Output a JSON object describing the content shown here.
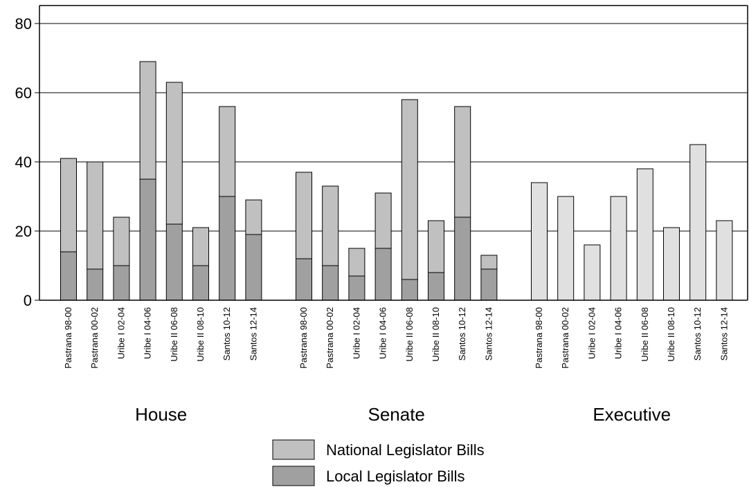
{
  "chart_data": {
    "type": "bar",
    "stacked": true,
    "ylim": [
      0,
      80
    ],
    "yticks": [
      0,
      20,
      40,
      60,
      80
    ],
    "grid": true,
    "legend_position": "bottom-center",
    "colors": {
      "national": "#c0c0c0",
      "local": "#a0a0a0",
      "executive": "#e0e0e0",
      "outline": "#000000"
    },
    "legend": [
      {
        "label": "National Legislator Bills",
        "series": "national"
      },
      {
        "label": "Local Legislator Bills",
        "series": "local"
      }
    ],
    "groups": [
      {
        "name": "House",
        "categories": [
          "Pastrana 98-00",
          "Pastrana 00-02",
          "Uribe I 02-04",
          "Uribe I 04-06",
          "Uribe II 06-08",
          "Uribe II 08-10",
          "Santos 10-12",
          "Santos 12-14"
        ],
        "series": [
          {
            "key": "local",
            "values": [
              14,
              9,
              10,
              35,
              22,
              10,
              30,
              19
            ]
          },
          {
            "key": "national",
            "values": [
              27,
              31,
              14,
              34,
              41,
              11,
              26,
              10
            ]
          }
        ]
      },
      {
        "name": "Senate",
        "categories": [
          "Pastrana 98-00",
          "Pastrana 00-02",
          "Uribe I 02-04",
          "Uribe I 04-06",
          "Uribe II 06-08",
          "Uribe II 08-10",
          "Santos 10-12",
          "Santos 12-14"
        ],
        "series": [
          {
            "key": "local",
            "values": [
              12,
              10,
              7,
              15,
              6,
              8,
              24,
              9
            ]
          },
          {
            "key": "national",
            "values": [
              25,
              23,
              8,
              16,
              52,
              15,
              32,
              4
            ]
          }
        ]
      },
      {
        "name": "Executive",
        "categories": [
          "Pastrana 98-00",
          "Pastrana 00-02",
          "Uribe I 02-04",
          "Uribe I 04-06",
          "Uribe II 06-08",
          "Uribe II 08-10",
          "Santos 10-12",
          "Santos 12-14"
        ],
        "series": [
          {
            "key": "executive",
            "values": [
              34,
              30,
              16,
              30,
              38,
              21,
              45,
              23
            ]
          }
        ]
      }
    ]
  }
}
